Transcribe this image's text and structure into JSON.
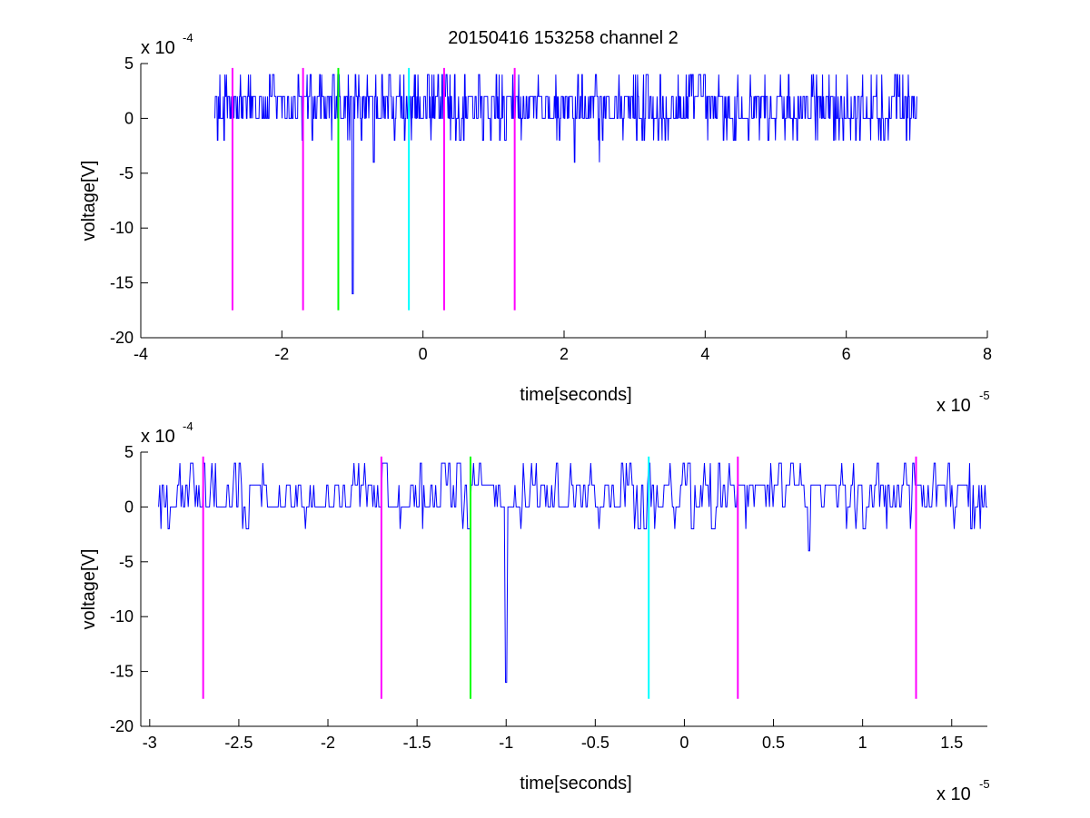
{
  "figure": {
    "title": "20150416 153258 channel 2"
  },
  "colors": {
    "background": "#ffffff",
    "signal": "#0000ff",
    "marker_magenta": "#ff00ff",
    "marker_green": "#00ff00",
    "marker_cyan": "#00ffff",
    "axis": "#000000"
  },
  "chart_data": [
    {
      "type": "line",
      "title": "20150416 153258 channel 2",
      "xlabel": "time[seconds]",
      "ylabel": "voltage[V]",
      "x_multiplier": "x 10",
      "x_exponent": "-5",
      "y_multiplier": "x 10",
      "y_exponent": "-4",
      "xlim": [
        -4e-05,
        8e-05
      ],
      "ylim": [
        -0.002,
        0.0005
      ],
      "xticks": [
        -4e-05,
        -2e-05,
        0,
        2e-05,
        4e-05,
        6e-05,
        8e-05
      ],
      "xtick_labels": [
        "-4",
        "-2",
        "0",
        "2",
        "4",
        "6",
        "8"
      ],
      "yticks": [
        -0.002,
        -0.0015,
        -0.001,
        -0.0005,
        0,
        0.0005
      ],
      "ytick_labels": [
        "-20",
        "-15",
        "-10",
        "-5",
        "0",
        "5"
      ],
      "grid": false,
      "signal": {
        "x_start": -2.95e-05,
        "x_end": 7e-05,
        "baseline_levels": [
          -0.0002,
          0,
          0.0002,
          0.0004
        ],
        "spikes": [
          {
            "x": -1e-05,
            "y": -0.0016
          },
          {
            "x": -7e-06,
            "y": -0.0004
          },
          {
            "x": 2.15e-05,
            "y": -0.0004
          },
          {
            "x": 2.5e-05,
            "y": -0.0004
          }
        ]
      },
      "markers": [
        {
          "x": -2.7e-05,
          "ymin": -0.00175,
          "ymax": 0.00046,
          "color": "#ff00ff"
        },
        {
          "x": -1.7e-05,
          "ymin": -0.00175,
          "ymax": 0.00046,
          "color": "#ff00ff"
        },
        {
          "x": -1.2e-05,
          "ymin": -0.00175,
          "ymax": 0.00046,
          "color": "#00ff00"
        },
        {
          "x": -2e-06,
          "ymin": -0.00175,
          "ymax": 0.00046,
          "color": "#00ffff"
        },
        {
          "x": 3e-06,
          "ymin": -0.00175,
          "ymax": 0.00046,
          "color": "#ff00ff"
        },
        {
          "x": 1.3e-05,
          "ymin": -0.00175,
          "ymax": 0.00046,
          "color": "#ff00ff"
        }
      ]
    },
    {
      "type": "line",
      "title": "",
      "xlabel": "time[seconds]",
      "ylabel": "voltage[V]",
      "x_multiplier": "x 10",
      "x_exponent": "-5",
      "y_multiplier": "x 10",
      "y_exponent": "-4",
      "xlim": [
        -3.05e-05,
        1.7e-05
      ],
      "ylim": [
        -0.002,
        0.0005
      ],
      "xticks": [
        -3e-05,
        -2.5e-05,
        -2e-05,
        -1.5e-05,
        -1e-05,
        -5e-06,
        0,
        5e-06,
        1e-05,
        1.5e-05
      ],
      "xtick_labels": [
        "-3",
        "-2.5",
        "-2",
        "-1.5",
        "-1",
        "-0.5",
        "0",
        "0.5",
        "1",
        "1.5"
      ],
      "yticks": [
        -0.002,
        -0.0015,
        -0.001,
        -0.0005,
        0,
        0.0005
      ],
      "ytick_labels": [
        "-20",
        "-15",
        "-10",
        "-5",
        "0",
        "5"
      ],
      "grid": false,
      "signal": {
        "x_start": -2.95e-05,
        "x_end": 1.7e-05,
        "baseline_levels": [
          -0.0002,
          0,
          0.0002,
          0.0004
        ],
        "spikes": [
          {
            "x": -1e-05,
            "y": -0.0016
          },
          {
            "x": 7e-06,
            "y": -0.0004
          }
        ]
      },
      "markers": [
        {
          "x": -2.7e-05,
          "ymin": -0.00175,
          "ymax": 0.00046,
          "color": "#ff00ff"
        },
        {
          "x": -1.7e-05,
          "ymin": -0.00175,
          "ymax": 0.00046,
          "color": "#ff00ff"
        },
        {
          "x": -1.2e-05,
          "ymin": -0.00175,
          "ymax": 0.00046,
          "color": "#00ff00"
        },
        {
          "x": -2e-06,
          "ymin": -0.00175,
          "ymax": 0.00046,
          "color": "#00ffff"
        },
        {
          "x": 3e-06,
          "ymin": -0.00175,
          "ymax": 0.00046,
          "color": "#ff00ff"
        },
        {
          "x": 1.3e-05,
          "ymin": -0.00175,
          "ymax": 0.00046,
          "color": "#ff00ff"
        }
      ]
    }
  ]
}
